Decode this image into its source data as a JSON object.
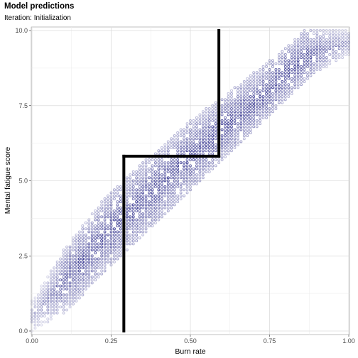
{
  "chart_data": {
    "type": "scatter",
    "title": "Model predictions",
    "subtitle": "Iteration: Initialization",
    "xlabel": "Burn rate",
    "ylabel": "Mental fatigue score",
    "xlim": [
      0,
      1
    ],
    "ylim": [
      0,
      10
    ],
    "x_ticks": [
      "0.00",
      "0.25",
      "0.50",
      "0.75",
      "1.00"
    ],
    "y_ticks": [
      "0.0",
      "2.5",
      "5.0",
      "7.5",
      "10.0"
    ],
    "grid": true,
    "point_color": "#1a1a80",
    "point_region": {
      "x_step": 0.01,
      "y_step": 0.1,
      "lower_edge": [
        [
          0.0,
          0.0
        ],
        [
          0.1,
          0.6
        ],
        [
          0.25,
          2.1
        ],
        [
          0.5,
          4.6
        ],
        [
          0.75,
          7.1
        ],
        [
          0.9,
          8.6
        ],
        [
          1.0,
          9.2
        ]
      ],
      "upper_edge": [
        [
          0.0,
          1.0
        ],
        [
          0.1,
          2.7
        ],
        [
          0.25,
          4.7
        ],
        [
          0.5,
          7.0
        ],
        [
          0.75,
          9.0
        ],
        [
          0.86,
          10.0
        ],
        [
          1.0,
          10.0
        ]
      ]
    },
    "tree_partition": {
      "color": "#000000",
      "segments": [
        {
          "from": [
            0.29,
            0.0
          ],
          "to": [
            0.29,
            5.82
          ]
        },
        {
          "from": [
            0.29,
            5.82
          ],
          "to": [
            0.59,
            5.82
          ]
        },
        {
          "from": [
            0.59,
            5.82
          ],
          "to": [
            0.59,
            10.0
          ]
        }
      ]
    }
  }
}
